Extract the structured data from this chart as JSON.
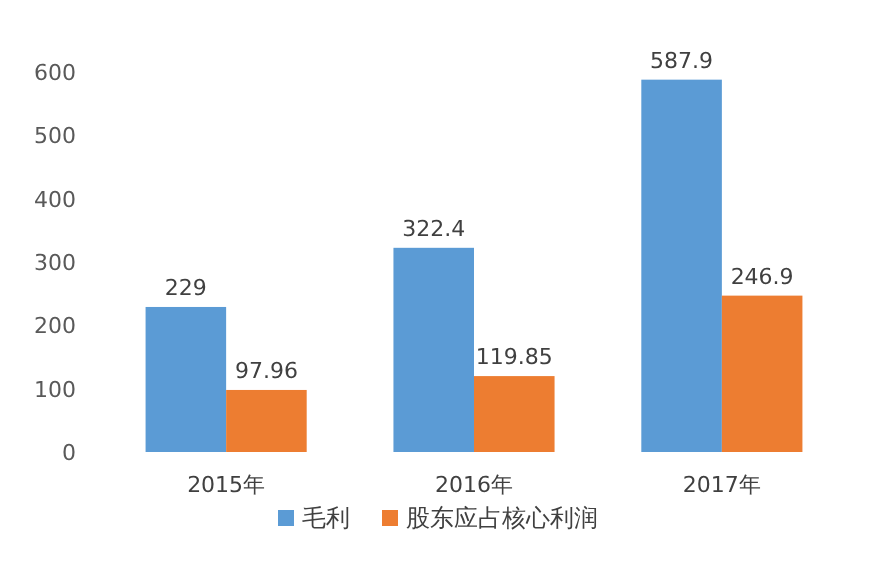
{
  "chart_data": {
    "type": "bar",
    "categories": [
      "2015年",
      "2016年",
      "2017年"
    ],
    "series": [
      {
        "name": "毛利",
        "color": "#5b9bd5",
        "values": [
          229,
          322.4,
          587.9
        ]
      },
      {
        "name": "股东应占核心利润",
        "color": "#ed7d31",
        "values": [
          97.96,
          119.85,
          246.9
        ]
      }
    ],
    "ylim": [
      0,
      600
    ],
    "yticks": [
      0,
      100,
      200,
      300,
      400,
      500,
      600
    ],
    "data_labels": true,
    "grid": false,
    "legend": "bottom"
  }
}
